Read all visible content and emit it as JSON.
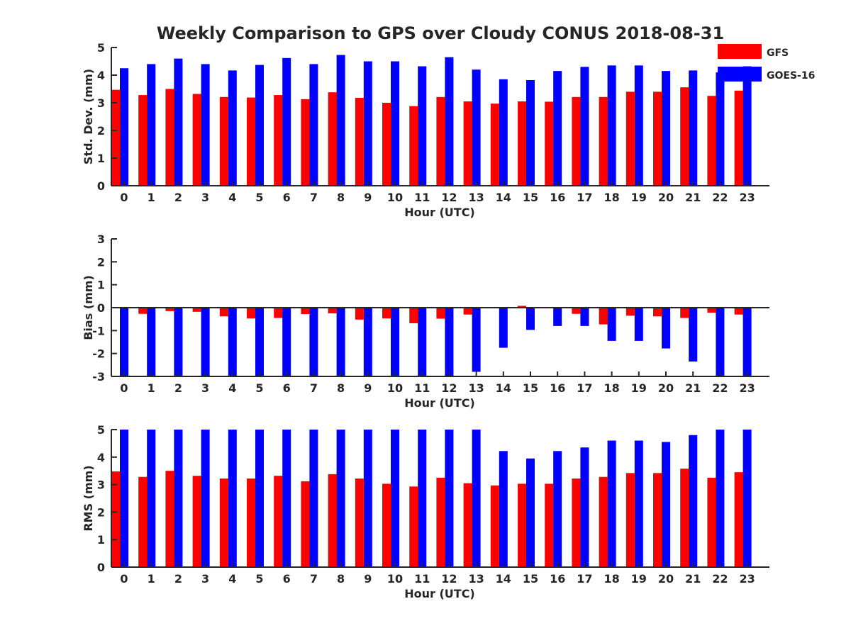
{
  "title": "Weekly Comparison to GPS over Cloudy CONUS 2018-08-31",
  "legend": [
    {
      "name": "GFS",
      "color": "#ff0000"
    },
    {
      "name": "GOES-16",
      "color": "#0000ff"
    }
  ],
  "chart_data": [
    {
      "type": "bar",
      "ylabel": "Std. Dev. (mm)",
      "xlabel": "Hour (UTC)",
      "ylim": [
        0,
        5
      ],
      "yticks": [
        0,
        1,
        2,
        3,
        4,
        5
      ],
      "categories": [
        "0",
        "1",
        "2",
        "3",
        "4",
        "5",
        "6",
        "7",
        "8",
        "9",
        "10",
        "11",
        "12",
        "13",
        "14",
        "15",
        "16",
        "17",
        "18",
        "19",
        "20",
        "21",
        "22",
        "23"
      ],
      "series": [
        {
          "name": "GFS",
          "color": "#ff0000",
          "values": [
            3.47,
            3.28,
            3.5,
            3.32,
            3.21,
            3.19,
            3.28,
            3.13,
            3.38,
            3.18,
            3.0,
            2.88,
            3.21,
            3.05,
            2.97,
            3.05,
            3.04,
            3.21,
            3.21,
            3.4,
            3.4,
            3.56,
            3.25,
            3.44
          ]
        },
        {
          "name": "GOES-16",
          "color": "#0000ff",
          "values": [
            4.25,
            4.4,
            4.6,
            4.4,
            4.17,
            4.37,
            4.62,
            4.4,
            4.73,
            4.5,
            4.5,
            4.32,
            4.65,
            4.2,
            3.85,
            3.82,
            4.15,
            4.3,
            4.35,
            4.35,
            4.15,
            4.17,
            4.1,
            4.32
          ]
        }
      ]
    },
    {
      "type": "bar",
      "ylabel": "Bias (mm)",
      "xlabel": "Hour (UTC)",
      "ylim": [
        -3,
        3
      ],
      "yticks": [
        -3,
        -2,
        -1,
        0,
        1,
        2,
        3
      ],
      "categories": [
        "0",
        "1",
        "2",
        "3",
        "4",
        "5",
        "6",
        "7",
        "8",
        "9",
        "10",
        "11",
        "12",
        "13",
        "14",
        "15",
        "16",
        "17",
        "18",
        "19",
        "20",
        "21",
        "22",
        "23"
      ],
      "series": [
        {
          "name": "GFS",
          "color": "#ff0000",
          "values": [
            0.0,
            -0.27,
            -0.15,
            -0.18,
            -0.38,
            -0.47,
            -0.45,
            -0.28,
            -0.25,
            -0.52,
            -0.47,
            -0.68,
            -0.48,
            -0.3,
            0.0,
            0.08,
            0.0,
            -0.27,
            -0.73,
            -0.35,
            -0.38,
            -0.45,
            -0.22,
            -0.3
          ]
        },
        {
          "name": "GOES-16",
          "color": "#0000ff",
          "values": [
            -3.0,
            -3.0,
            -3.0,
            -3.0,
            -3.0,
            -3.0,
            -3.0,
            -3.0,
            -3.0,
            -3.0,
            -3.0,
            -3.0,
            -3.0,
            -2.8,
            -1.75,
            -0.97,
            -0.8,
            -0.8,
            -1.45,
            -1.45,
            -1.78,
            -2.35,
            -2.97,
            -3.0
          ]
        }
      ]
    },
    {
      "type": "bar",
      "ylabel": "RMS (mm)",
      "xlabel": "Hour (UTC)",
      "ylim": [
        0,
        5
      ],
      "yticks": [
        0,
        1,
        2,
        3,
        4,
        5
      ],
      "categories": [
        "0",
        "1",
        "2",
        "3",
        "4",
        "5",
        "6",
        "7",
        "8",
        "9",
        "10",
        "11",
        "12",
        "13",
        "14",
        "15",
        "16",
        "17",
        "18",
        "19",
        "20",
        "21",
        "22",
        "23"
      ],
      "series": [
        {
          "name": "GFS",
          "color": "#ff0000",
          "values": [
            3.48,
            3.28,
            3.5,
            3.32,
            3.22,
            3.22,
            3.32,
            3.12,
            3.38,
            3.22,
            3.03,
            2.93,
            3.25,
            3.05,
            2.97,
            3.03,
            3.03,
            3.22,
            3.28,
            3.42,
            3.42,
            3.58,
            3.25,
            3.45
          ]
        },
        {
          "name": "GOES-16",
          "color": "#0000ff",
          "values": [
            5.0,
            5.0,
            5.0,
            5.0,
            5.0,
            5.0,
            5.0,
            5.0,
            5.0,
            5.0,
            5.0,
            5.0,
            5.0,
            5.0,
            4.22,
            3.95,
            4.22,
            4.35,
            4.6,
            4.6,
            4.55,
            4.8,
            5.0,
            5.0
          ]
        }
      ]
    }
  ]
}
